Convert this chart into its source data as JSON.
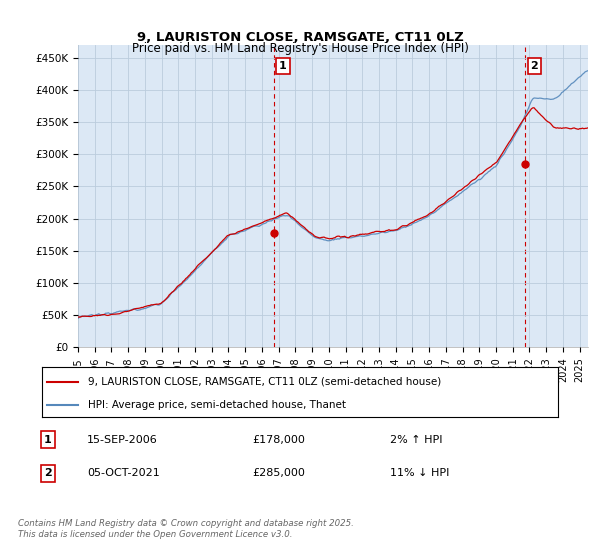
{
  "title": "9, LAURISTON CLOSE, RAMSGATE, CT11 0LZ",
  "subtitle": "Price paid vs. HM Land Registry's House Price Index (HPI)",
  "ylabel_ticks": [
    "£0",
    "£50K",
    "£100K",
    "£150K",
    "£200K",
    "£250K",
    "£300K",
    "£350K",
    "£400K",
    "£450K"
  ],
  "ytick_values": [
    0,
    50000,
    100000,
    150000,
    200000,
    250000,
    300000,
    350000,
    400000,
    450000
  ],
  "ylim": [
    0,
    470000
  ],
  "xlim_start": 1995.0,
  "xlim_end": 2025.5,
  "hpi_color": "#5588bb",
  "price_color": "#cc0000",
  "plot_bg_color": "#dce8f5",
  "marker1_x": 2006.72,
  "marker1_y": 178000,
  "marker2_x": 2021.76,
  "marker2_y": 285000,
  "legend_label1": "9, LAURISTON CLOSE, RAMSGATE, CT11 0LZ (semi-detached house)",
  "legend_label2": "HPI: Average price, semi-detached house, Thanet",
  "table_row1_num": "1",
  "table_row1_date": "15-SEP-2006",
  "table_row1_price": "£178,000",
  "table_row1_hpi": "2% ↑ HPI",
  "table_row2_num": "2",
  "table_row2_date": "05-OCT-2021",
  "table_row2_price": "£285,000",
  "table_row2_hpi": "11% ↓ HPI",
  "copyright_text": "Contains HM Land Registry data © Crown copyright and database right 2025.\nThis data is licensed under the Open Government Licence v3.0.",
  "background_color": "#ffffff",
  "grid_color": "#bbccdd"
}
